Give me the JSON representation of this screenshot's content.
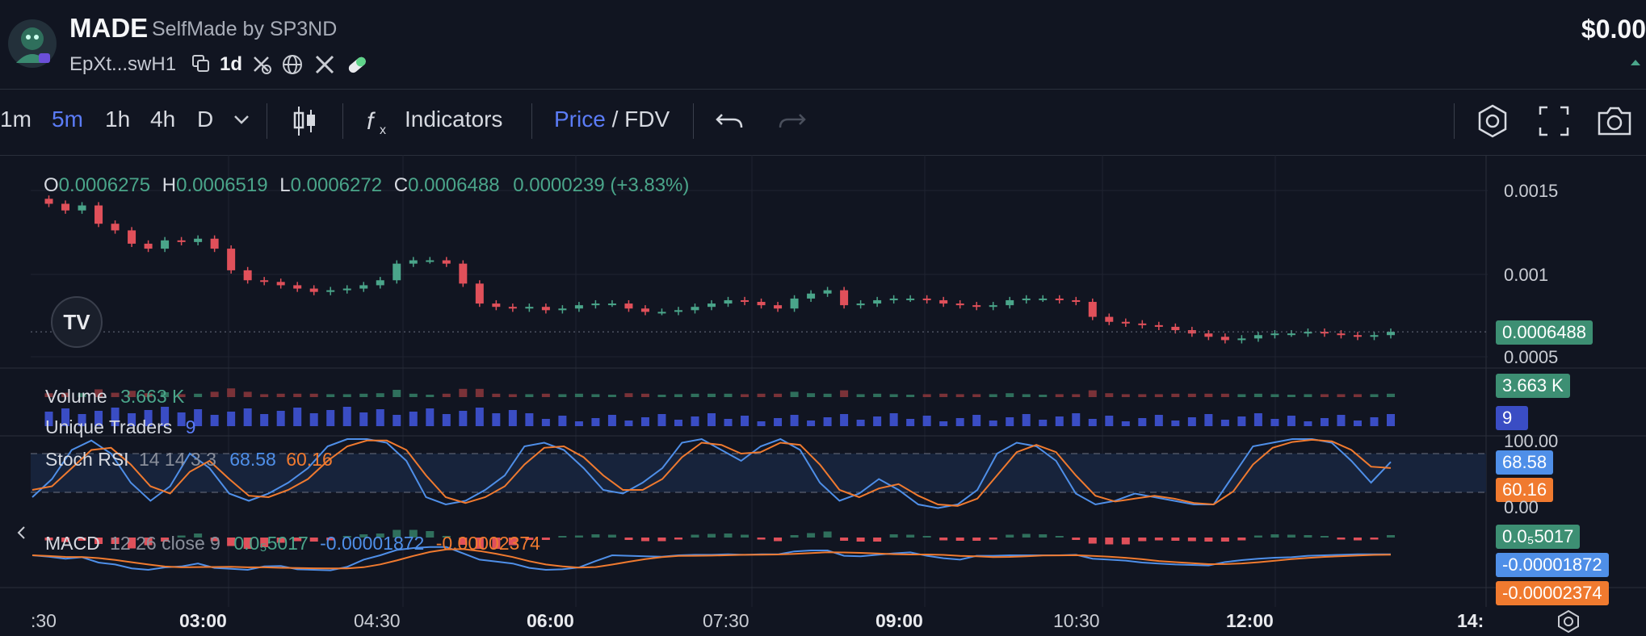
{
  "header": {
    "name": "MADE",
    "subtitle": "SelfMade by SP3ND",
    "address": "EpXt...swH1",
    "age": "1d",
    "price": "$0.00"
  },
  "toolbar": {
    "intervals": [
      "1m",
      "5m",
      "1h",
      "4h",
      "D"
    ],
    "active_interval": "5m",
    "indicators_label": "Indicators",
    "price_label": "Price",
    "fdv_label": " / FDV"
  },
  "ohlc": {
    "o_label": "O",
    "o": "0.0006275",
    "h_label": "H",
    "h": "0.0006519",
    "l_label": "L",
    "l": "0.0006272",
    "c_label": "C",
    "c": "0.0006488",
    "change": "0.0000239 (+3.83%)"
  },
  "volume": {
    "label": "Volume",
    "value": "3.663 K"
  },
  "traders": {
    "label": "Unique Traders",
    "value": "9"
  },
  "stoch": {
    "label": "Stoch RSI",
    "params": "14 14 3 3",
    "k": "68.58",
    "d": "60.16"
  },
  "macd": {
    "label": "MACD",
    "params": "12 26 close 9",
    "hist": "0.0₅5017",
    "macd": "-0.00001872",
    "signal": "-0.00002374"
  },
  "axis": {
    "price_ticks": [
      "0.0015",
      "0.001",
      "0.0005"
    ],
    "price_badge": "0.0006488",
    "volume_badge": "3.663 K",
    "traders_badge": "9",
    "stoch_ticks": [
      "100.00",
      "0.00"
    ],
    "stoch_k_badge": "68.58",
    "stoch_d_badge": "60.16",
    "macd_hist_badge": "0.0₅5017",
    "macd_badge": "-0.00001872",
    "signal_badge": "-0.00002374"
  },
  "time_labels": [
    ":30",
    "03:00",
    "04:30",
    "06:00",
    "07:30",
    "09:00",
    "10:30",
    "12:00",
    "14:"
  ],
  "colors": {
    "up": "#4aa58a",
    "down": "#e0505a",
    "blue": "#5b7cf6",
    "stoch_k": "#4f8fe8",
    "stoch_d": "#f07a2f",
    "traders": "#3a4dc4"
  },
  "chart_data": {
    "type": "line",
    "price_close_path": [
      0.00145,
      0.00142,
      0.00138,
      0.00141,
      0.0013,
      0.00126,
      0.00118,
      0.00115,
      0.0012,
      0.00119,
      0.00121,
      0.00115,
      0.00102,
      0.00096,
      0.00095,
      0.00093,
      0.00091,
      0.00089,
      0.0009,
      0.00091,
      0.00093,
      0.00096,
      0.00106,
      0.00108,
      0.00108,
      0.00106,
      0.00094,
      0.00082,
      0.0008,
      0.00079,
      0.0008,
      0.00078,
      0.00079,
      0.00081,
      0.00082,
      0.00082,
      0.00079,
      0.00077,
      0.00077,
      0.00078,
      0.0008,
      0.00082,
      0.00084,
      0.00083,
      0.00081,
      0.00079,
      0.00085,
      0.00088,
      0.0009,
      0.00081,
      0.00082,
      0.00084,
      0.00085,
      0.00085,
      0.00084,
      0.00082,
      0.00081,
      0.0008,
      0.00081,
      0.00084,
      0.00085,
      0.00085,
      0.00084,
      0.00083,
      0.00074,
      0.00071,
      0.0007,
      0.00069,
      0.00068,
      0.00066,
      0.00064,
      0.00062,
      0.0006,
      0.00061,
      0.00063,
      0.00064,
      0.00064,
      0.00065,
      0.00064,
      0.00063,
      0.00062,
      0.00063,
      0.00065
    ],
    "stoch_k": [
      20,
      45,
      85,
      98,
      80,
      40,
      15,
      35,
      80,
      60,
      25,
      15,
      25,
      40,
      60,
      90,
      100,
      100,
      95,
      70,
      20,
      10,
      15,
      30,
      50,
      90,
      95,
      85,
      60,
      30,
      25,
      40,
      60,
      95,
      100,
      85,
      70,
      90,
      100,
      85,
      40,
      15,
      25,
      45,
      30,
      10,
      5,
      10,
      30,
      80,
      95,
      90,
      70,
      25,
      10,
      15,
      25,
      20,
      15,
      10,
      10,
      50,
      90,
      95,
      100,
      100,
      95,
      70,
      40,
      68.58
    ],
    "stoch_d": [
      30,
      35,
      60,
      85,
      88,
      65,
      35,
      25,
      55,
      70,
      45,
      22,
      20,
      30,
      45,
      70,
      90,
      98,
      98,
      85,
      50,
      20,
      12,
      20,
      35,
      65,
      88,
      90,
      75,
      50,
      30,
      30,
      45,
      75,
      95,
      92,
      80,
      82,
      95,
      92,
      65,
      30,
      20,
      32,
      38,
      22,
      10,
      8,
      18,
      50,
      82,
      92,
      82,
      50,
      22,
      14,
      18,
      22,
      18,
      12,
      10,
      28,
      65,
      88,
      96,
      99,
      97,
      85,
      62,
      60.16
    ]
  }
}
